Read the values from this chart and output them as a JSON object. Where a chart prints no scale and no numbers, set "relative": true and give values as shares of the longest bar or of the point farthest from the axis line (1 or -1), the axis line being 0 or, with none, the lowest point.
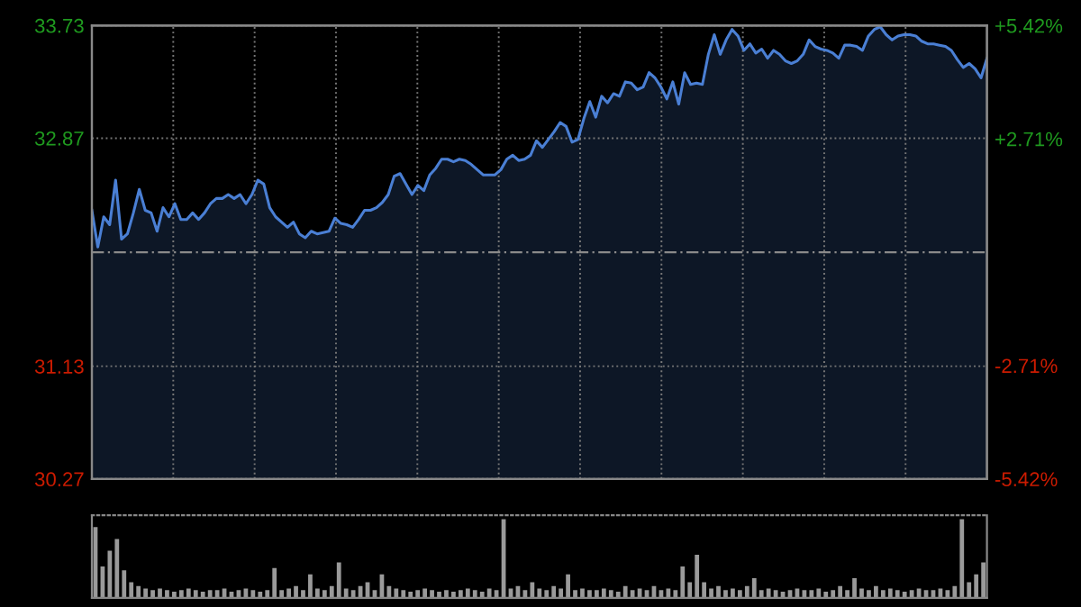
{
  "chart_data": [
    {
      "type": "area",
      "categories": [
        null,
        null,
        null,
        null,
        null,
        null,
        null,
        null,
        null,
        null,
        null,
        null,
        null,
        null,
        null,
        null,
        null,
        null,
        null,
        null,
        null,
        null,
        null,
        null,
        null,
        null,
        null,
        null,
        null,
        null,
        null,
        null,
        null,
        null,
        null,
        null,
        null,
        null,
        null,
        null,
        null,
        null,
        null,
        null,
        null,
        null,
        null,
        null,
        null,
        null,
        null,
        null,
        null,
        null,
        null,
        null,
        null,
        null,
        null,
        null,
        null,
        null,
        null,
        null,
        null,
        null,
        null,
        null,
        null,
        null,
        null,
        null,
        null,
        null,
        null,
        null,
        null,
        null,
        null,
        null,
        null,
        null,
        null,
        null,
        null,
        null,
        null,
        null,
        null,
        null,
        null,
        null,
        null,
        null,
        null,
        null,
        null,
        null,
        null,
        null,
        null,
        null,
        null,
        null,
        null,
        null,
        null,
        null,
        null,
        null,
        null,
        null,
        null,
        null,
        null,
        null,
        null,
        null,
        null,
        null,
        null,
        null,
        null,
        null,
        null,
        null,
        null,
        null,
        null,
        null,
        null,
        null,
        null,
        null,
        null,
        null,
        null,
        null,
        null,
        null,
        null,
        null,
        null,
        null,
        null,
        null,
        null,
        null,
        null,
        null,
        null,
        null
      ],
      "series": [
        {
          "color": "#4a7fd4",
          "values": [
            32.32,
            32.04,
            32.27,
            32.21,
            32.55,
            32.1,
            32.14,
            32.3,
            32.48,
            32.32,
            32.3,
            32.16,
            32.34,
            32.27,
            32.37,
            32.25,
            32.25,
            32.3,
            32.25,
            32.3,
            32.37,
            32.41,
            32.41,
            32.44,
            32.41,
            32.44,
            32.37,
            32.44,
            32.55,
            32.52,
            32.34,
            32.27,
            32.23,
            32.19,
            32.23,
            32.14,
            32.11,
            32.16,
            32.14,
            32.15,
            32.16,
            32.26,
            32.22,
            32.21,
            32.19,
            32.25,
            32.32,
            32.32,
            32.34,
            32.38,
            32.44,
            32.58,
            32.6,
            32.52,
            32.44,
            32.51,
            32.47,
            32.59,
            32.64,
            32.71,
            32.71,
            32.69,
            32.71,
            32.7,
            32.67,
            32.63,
            32.59,
            32.59,
            32.59,
            32.63,
            32.71,
            32.74,
            32.7,
            32.71,
            32.74,
            32.85,
            32.8,
            32.86,
            32.92,
            32.99,
            32.96,
            32.84,
            32.86,
            33.02,
            33.15,
            33.03,
            33.19,
            33.14,
            33.21,
            33.19,
            33.3,
            33.29,
            33.24,
            33.26,
            33.37,
            33.33,
            33.26,
            33.17,
            33.3,
            33.13,
            33.37,
            33.28,
            33.29,
            33.28,
            33.51,
            33.66,
            33.51,
            33.62,
            33.7,
            33.65,
            33.54,
            33.59,
            33.52,
            33.55,
            33.48,
            33.54,
            33.51,
            33.46,
            33.44,
            33.46,
            33.51,
            33.62,
            33.57,
            33.55,
            33.54,
            33.52,
            33.48,
            33.58,
            33.58,
            33.57,
            33.54,
            33.65,
            33.7,
            33.72,
            33.66,
            33.62,
            33.65,
            33.66,
            33.66,
            33.65,
            33.61,
            33.59,
            33.59,
            33.58,
            33.57,
            33.54,
            33.47,
            33.41,
            33.44,
            33.4,
            33.33,
            33.48
          ]
        }
      ],
      "ylim": [
        30.27,
        33.73
      ],
      "yticks": [
        33.73,
        32.87,
        31.13,
        30.27
      ],
      "y2lim": [
        -5.42,
        5.42
      ],
      "y2ticks": [
        {
          "value": 5.42,
          "label": "+5.42%"
        },
        {
          "value": 2.71,
          "label": "+2.71%"
        },
        {
          "value": -2.71,
          "label": "-2.71%"
        },
        {
          "value": -5.42,
          "label": "-5.42%"
        }
      ],
      "ref_lines": [
        {
          "axis": "y",
          "value": 32.0,
          "color": "#8a8a8a",
          "line_style": "dashed"
        }
      ],
      "grid": true
    },
    {
      "type": "bar",
      "relative": true,
      "color": "#9a9a9a",
      "categories": [
        null,
        null,
        null,
        null,
        null,
        null,
        null,
        null,
        null,
        null,
        null,
        null,
        null,
        null,
        null,
        null,
        null,
        null,
        null,
        null,
        null,
        null,
        null,
        null,
        null,
        null,
        null,
        null,
        null,
        null,
        null,
        null,
        null,
        null,
        null,
        null,
        null,
        null,
        null,
        null,
        null,
        null,
        null,
        null,
        null,
        null,
        null,
        null,
        null,
        null,
        null,
        null,
        null,
        null,
        null,
        null,
        null,
        null,
        null,
        null,
        null,
        null,
        null,
        null,
        null,
        null,
        null,
        null,
        null,
        null,
        null,
        null,
        null,
        null,
        null,
        null,
        null,
        null,
        null,
        null,
        null,
        null,
        null,
        null,
        null,
        null,
        null,
        null,
        null,
        null,
        null,
        null,
        null,
        null,
        null,
        null,
        null,
        null,
        null,
        null,
        null,
        null,
        null,
        null,
        null,
        null,
        null,
        null,
        null,
        null,
        null,
        null,
        null,
        null,
        null,
        null,
        null,
        null,
        null,
        null,
        null,
        null,
        null,
        null,
        null
      ],
      "values": [
        0.9,
        0.4,
        0.6,
        0.75,
        0.35,
        0.2,
        0.15,
        0.12,
        0.1,
        0.12,
        0.1,
        0.08,
        0.1,
        0.12,
        0.1,
        0.08,
        0.1,
        0.1,
        0.12,
        0.08,
        0.1,
        0.12,
        0.1,
        0.08,
        0.1,
        0.38,
        0.1,
        0.12,
        0.15,
        0.1,
        0.3,
        0.12,
        0.1,
        0.15,
        0.45,
        0.12,
        0.1,
        0.15,
        0.2,
        0.1,
        0.3,
        0.15,
        0.12,
        0.1,
        0.08,
        0.1,
        0.12,
        0.1,
        0.08,
        0.1,
        0.08,
        0.1,
        0.12,
        0.1,
        0.08,
        0.12,
        0.1,
        1.0,
        0.12,
        0.15,
        0.1,
        0.2,
        0.12,
        0.1,
        0.15,
        0.12,
        0.3,
        0.1,
        0.12,
        0.1,
        0.1,
        0.12,
        0.1,
        0.08,
        0.15,
        0.1,
        0.12,
        0.1,
        0.15,
        0.1,
        0.12,
        0.1,
        0.4,
        0.2,
        0.55,
        0.2,
        0.12,
        0.15,
        0.1,
        0.12,
        0.1,
        0.15,
        0.25,
        0.1,
        0.12,
        0.1,
        0.08,
        0.1,
        0.12,
        0.1,
        0.1,
        0.12,
        0.08,
        0.1,
        0.15,
        0.1,
        0.25,
        0.12,
        0.1,
        0.15,
        0.1,
        0.12,
        0.1,
        0.08,
        0.1,
        0.12,
        0.1,
        0.1,
        0.12,
        0.1,
        0.15,
        1.0,
        0.2,
        0.3,
        0.45
      ]
    }
  ]
}
